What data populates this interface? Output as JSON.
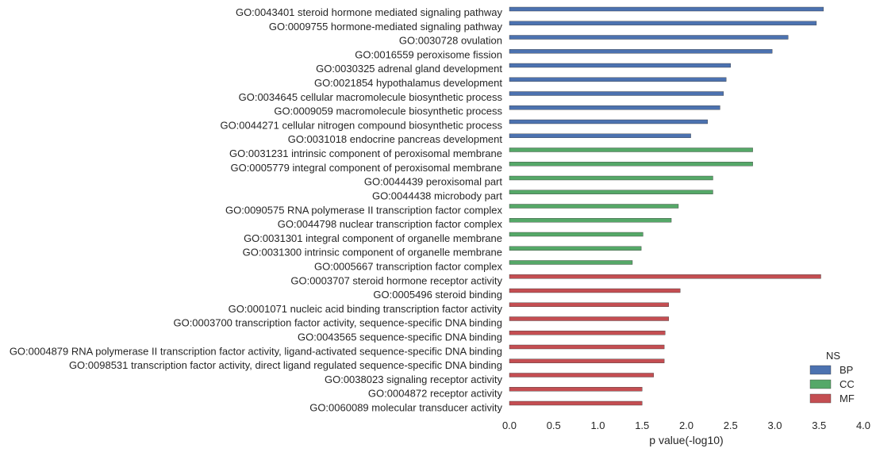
{
  "chart_data": {
    "type": "bar",
    "orientation": "horizontal",
    "xlabel": "p value(-log10)",
    "xlim": [
      0,
      4
    ],
    "xticks": [
      "0.0",
      "0.5",
      "1.0",
      "1.5",
      "2.0",
      "2.5",
      "3.0",
      "3.5",
      "4.0"
    ],
    "grid": false,
    "legend": {
      "title": "NS",
      "placement": "lower-right",
      "entries": [
        {
          "name": "BP",
          "color": "#4c72b0"
        },
        {
          "name": "CC",
          "color": "#55a868"
        },
        {
          "name": "MF",
          "color": "#c44e52"
        }
      ]
    },
    "bars": [
      {
        "label": "GO:0043401 steroid hormone mediated signaling pathway",
        "value": 3.55,
        "ns": "BP"
      },
      {
        "label": "GO:0009755 hormone-mediated signaling pathway",
        "value": 3.47,
        "ns": "BP"
      },
      {
        "label": "GO:0030728 ovulation",
        "value": 3.15,
        "ns": "BP"
      },
      {
        "label": "GO:0016559 peroxisome fission",
        "value": 2.97,
        "ns": "BP"
      },
      {
        "label": "GO:0030325 adrenal gland development",
        "value": 2.5,
        "ns": "BP"
      },
      {
        "label": "GO:0021854 hypothalamus development",
        "value": 2.45,
        "ns": "BP"
      },
      {
        "label": "GO:0034645 cellular macromolecule biosynthetic process",
        "value": 2.42,
        "ns": "BP"
      },
      {
        "label": "GO:0009059 macromolecule biosynthetic process",
        "value": 2.38,
        "ns": "BP"
      },
      {
        "label": "GO:0044271 cellular nitrogen compound biosynthetic process",
        "value": 2.24,
        "ns": "BP"
      },
      {
        "label": "GO:0031018 endocrine pancreas development",
        "value": 2.05,
        "ns": "BP"
      },
      {
        "label": "GO:0031231 intrinsic component of peroxisomal membrane",
        "value": 2.75,
        "ns": "CC"
      },
      {
        "label": "GO:0005779 integral component of peroxisomal membrane",
        "value": 2.75,
        "ns": "CC"
      },
      {
        "label": "GO:0044439 peroxisomal part",
        "value": 2.3,
        "ns": "CC"
      },
      {
        "label": "GO:0044438 microbody part",
        "value": 2.3,
        "ns": "CC"
      },
      {
        "label": "GO:0090575 RNA polymerase II transcription factor complex",
        "value": 1.91,
        "ns": "CC"
      },
      {
        "label": "GO:0044798 nuclear transcription factor complex",
        "value": 1.83,
        "ns": "CC"
      },
      {
        "label": "GO:0031301 integral component of organelle membrane",
        "value": 1.51,
        "ns": "CC"
      },
      {
        "label": "GO:0031300 intrinsic component of organelle membrane",
        "value": 1.49,
        "ns": "CC"
      },
      {
        "label": "GO:0005667 transcription factor complex",
        "value": 1.39,
        "ns": "CC"
      },
      {
        "label": "GO:0003707 steroid hormone receptor activity",
        "value": 3.52,
        "ns": "MF"
      },
      {
        "label": "GO:0005496 steroid binding",
        "value": 1.93,
        "ns": "MF"
      },
      {
        "label": "GO:0001071 nucleic acid binding transcription factor activity",
        "value": 1.8,
        "ns": "MF"
      },
      {
        "label": "GO:0003700 transcription factor activity, sequence-specific DNA binding",
        "value": 1.8,
        "ns": "MF"
      },
      {
        "label": "GO:0043565 sequence-specific DNA binding",
        "value": 1.76,
        "ns": "MF"
      },
      {
        "label": "GO:0004879 RNA polymerase II transcription factor activity, ligand-activated sequence-specific DNA binding",
        "value": 1.75,
        "ns": "MF"
      },
      {
        "label": "GO:0098531 transcription factor activity, direct ligand regulated sequence-specific DNA binding",
        "value": 1.75,
        "ns": "MF"
      },
      {
        "label": "GO:0038023 signaling receptor activity",
        "value": 1.63,
        "ns": "MF"
      },
      {
        "label": "GO:0004872 receptor activity",
        "value": 1.5,
        "ns": "MF"
      },
      {
        "label": "GO:0060089 molecular transducer activity",
        "value": 1.5,
        "ns": "MF"
      }
    ]
  }
}
